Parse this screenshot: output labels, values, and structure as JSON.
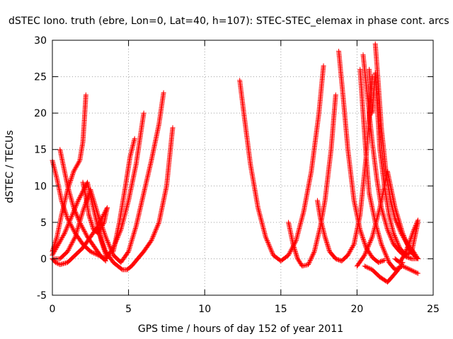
{
  "chart_data": {
    "type": "scatter",
    "title": "dSTEC Iono. truth (ebre, Lon=0, Lat=40, h=107): STEC-STEC_elemax in phase cont. arcs",
    "xlabel": "GPS time / hours of day 152 of year 2011",
    "ylabel": "dSTEC  / TECUs",
    "xlim": [
      0,
      25
    ],
    "ylim": [
      -5,
      30
    ],
    "xticks": [
      0,
      5,
      10,
      15,
      20,
      25
    ],
    "yticks": [
      -5,
      0,
      5,
      10,
      15,
      20,
      25,
      30
    ],
    "grid": true,
    "marker": "+",
    "colors": {
      "series": "#ff0000",
      "grid": "#a0a0a0",
      "axis": "#000000"
    },
    "series": [
      {
        "x": [
          0.0,
          0.3,
          0.6,
          1.0,
          1.4,
          1.8,
          2.0,
          2.1,
          2.2
        ],
        "y": [
          1.0,
          3.0,
          6.0,
          9.5,
          12.0,
          13.5,
          16.0,
          19.0,
          22.5
        ]
      },
      {
        "x": [
          0.0,
          0.2,
          0.5,
          1.0,
          1.5,
          2.0,
          2.5,
          3.0,
          3.3,
          3.6
        ],
        "y": [
          0.0,
          -0.5,
          -0.8,
          -0.5,
          0.5,
          1.5,
          3.0,
          4.5,
          5.8,
          7.0
        ]
      },
      {
        "x": [
          0.5,
          0.7,
          1.0,
          1.4,
          1.8,
          2.3,
          2.8,
          3.2,
          3.5
        ],
        "y": [
          15.0,
          13.0,
          10.0,
          7.0,
          5.0,
          3.0,
          1.5,
          0.3,
          -0.3
        ]
      },
      {
        "x": [
          0.0,
          0.3,
          0.6,
          1.0,
          1.5,
          2.0,
          2.5,
          3.0,
          3.5,
          4.0,
          4.5,
          5.0,
          5.5,
          6.0
        ],
        "y": [
          13.5,
          11.0,
          8.0,
          5.5,
          3.5,
          2.0,
          1.0,
          0.5,
          0.0,
          1.5,
          4.0,
          8.0,
          13.0,
          20.0
        ]
      },
      {
        "x": [
          0.0,
          0.5,
          1.0,
          1.5,
          2.0,
          2.5,
          3.0,
          3.5,
          4.0,
          4.5,
          5.0,
          5.5,
          6.0,
          6.5,
          7.0,
          7.3
        ],
        "y": [
          0.0,
          0.0,
          1.0,
          3.0,
          6.5,
          9.5,
          6.0,
          3.0,
          0.5,
          -0.5,
          1.0,
          4.5,
          9.0,
          13.5,
          18.5,
          22.8
        ]
      },
      {
        "x": [
          0.0,
          0.4,
          0.8,
          1.2,
          1.7,
          2.3,
          2.8,
          3.2,
          3.6
        ],
        "y": [
          0.5,
          2.0,
          3.5,
          5.5,
          8.0,
          10.5,
          6.0,
          2.5,
          0.0
        ]
      },
      {
        "x": [
          3.0,
          3.5,
          4.0,
          4.3,
          4.6,
          4.9,
          5.2,
          5.6,
          6.0,
          6.5,
          7.0,
          7.5,
          7.9
        ],
        "y": [
          4.0,
          1.0,
          -0.5,
          -1.0,
          -1.5,
          -1.5,
          -1.0,
          0.0,
          1.0,
          2.5,
          5.0,
          10.0,
          18.0
        ]
      },
      {
        "x": [
          3.6,
          3.4,
          3.0,
          2.7,
          2.4,
          2.2,
          2.0
        ],
        "y": [
          7.0,
          5.0,
          3.5,
          4.0,
          6.0,
          8.5,
          10.5
        ]
      },
      {
        "x": [
          4.0,
          4.4,
          4.8,
          5.1,
          5.4
        ],
        "y": [
          1.0,
          5.0,
          10.0,
          14.0,
          16.5
        ]
      },
      {
        "x": [
          12.3,
          12.6,
          13.0,
          13.5,
          14.0,
          14.5,
          15.0,
          15.5,
          16.0,
          16.5,
          17.0,
          17.5,
          17.8
        ],
        "y": [
          24.5,
          19.5,
          13.0,
          7.0,
          3.0,
          0.5,
          -0.3,
          0.5,
          2.5,
          6.5,
          12.0,
          20.0,
          26.5
        ]
      },
      {
        "x": [
          15.5,
          15.8,
          16.1,
          16.4,
          16.8,
          17.2,
          17.6,
          17.9,
          18.3,
          18.6
        ],
        "y": [
          5.0,
          2.0,
          0.0,
          -1.0,
          -0.8,
          1.0,
          4.5,
          8.0,
          15.0,
          22.5
        ]
      },
      {
        "x": [
          17.4,
          17.6,
          17.9,
          18.2,
          18.6,
          19.0,
          19.4,
          19.8,
          20.2,
          20.6,
          21.0
        ],
        "y": [
          8.0,
          5.5,
          3.0,
          1.0,
          0.0,
          -0.3,
          0.5,
          2.0,
          6.0,
          14.0,
          25.0
        ]
      },
      {
        "x": [
          18.8,
          19.1,
          19.4,
          19.8,
          20.2,
          20.6,
          21.0,
          21.4,
          21.8
        ],
        "y": [
          28.5,
          22.0,
          15.0,
          8.0,
          4.0,
          1.5,
          0.2,
          -0.5,
          -0.2
        ]
      },
      {
        "x": [
          20.2,
          20.4,
          20.6,
          20.8,
          21.2,
          21.6,
          22.1,
          22.5,
          23.0,
          23.5,
          24.0
        ],
        "y": [
          26.0,
          20.0,
          14.0,
          9.0,
          5.0,
          2.0,
          -0.5,
          -1.5,
          -1.0,
          -1.5,
          -2.0
        ]
      },
      {
        "x": [
          20.4,
          20.7,
          21.0,
          21.3,
          21.6,
          22.0,
          22.4,
          22.8,
          23.2,
          23.6,
          24.0
        ],
        "y": [
          28.0,
          22.0,
          16.0,
          11.0,
          7.0,
          4.0,
          2.0,
          1.0,
          0.3,
          0.0,
          0.0
        ]
      },
      {
        "x": [
          20.8,
          21.0,
          21.2,
          21.5,
          21.8,
          22.1,
          22.4,
          22.8,
          23.2,
          23.6,
          24.0
        ],
        "y": [
          26.0,
          20.0,
          25.5,
          15.0,
          10.0,
          6.0,
          3.5,
          1.5,
          0.5,
          1.0,
          5.0
        ]
      },
      {
        "x": [
          21.2,
          21.4,
          21.6,
          21.9,
          22.2,
          22.5,
          22.9,
          23.3,
          23.7,
          24.0
        ],
        "y": [
          29.5,
          24.0,
          18.0,
          12.0,
          8.0,
          5.5,
          3.5,
          2.0,
          1.0,
          0.0
        ]
      },
      {
        "x": [
          20.0,
          20.5,
          21.0,
          21.5,
          22.0,
          22.5,
          23.0,
          23.5,
          24.0
        ],
        "y": [
          -1.0,
          0.5,
          3.0,
          7.0,
          12.0,
          7.0,
          3.5,
          1.0,
          0.0
        ]
      },
      {
        "x": [
          20.5,
          21.0,
          21.5,
          22.0,
          22.3,
          22.7,
          23.0
        ],
        "y": [
          -1.0,
          -1.5,
          -2.5,
          -3.2,
          -2.5,
          -1.5,
          -0.5
        ]
      },
      {
        "x": [
          22.5,
          22.8,
          23.1,
          23.4,
          23.7,
          24.0
        ],
        "y": [
          0.0,
          -0.5,
          0.5,
          2.0,
          3.8,
          5.3
        ]
      }
    ]
  }
}
